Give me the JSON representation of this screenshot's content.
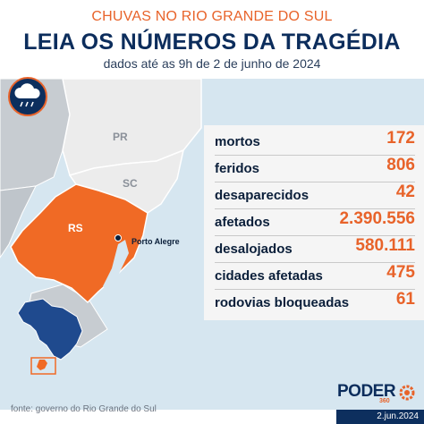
{
  "header": {
    "kicker": "CHUVAS NO RIO GRANDE DO SUL",
    "title": "LEIA OS NÚMEROS DA TRAGÉDIA",
    "subtitle": "dados até as 9h de 2 de junho de 2024"
  },
  "map": {
    "labels": {
      "pr": "PR",
      "sc": "SC",
      "rs": "RS",
      "city": "Porto Alegre"
    },
    "colors": {
      "highlight": "#f06a25",
      "land": "#ececec",
      "neighbor": "#c7ccd1",
      "sea": "#d6e6f0",
      "brazil": "#1f4a8e"
    },
    "badge_icon": "rain-cloud-icon"
  },
  "stats": [
    {
      "label": "mortos",
      "value": "172"
    },
    {
      "label": "feridos",
      "value": "806"
    },
    {
      "label": "desaparecidos",
      "value": "42"
    },
    {
      "label": "afetados",
      "value": "2.390.556"
    },
    {
      "label": "desalojados",
      "value": "580.111"
    },
    {
      "label": "cidades afetadas",
      "value": "475"
    },
    {
      "label": "rodovias bloqueadas",
      "value": "61"
    }
  ],
  "footer": {
    "source": "fonte: governo do Rio Grande do Sul",
    "brand": "PODER",
    "brand_number": "360",
    "date": "2.jun.2024"
  }
}
